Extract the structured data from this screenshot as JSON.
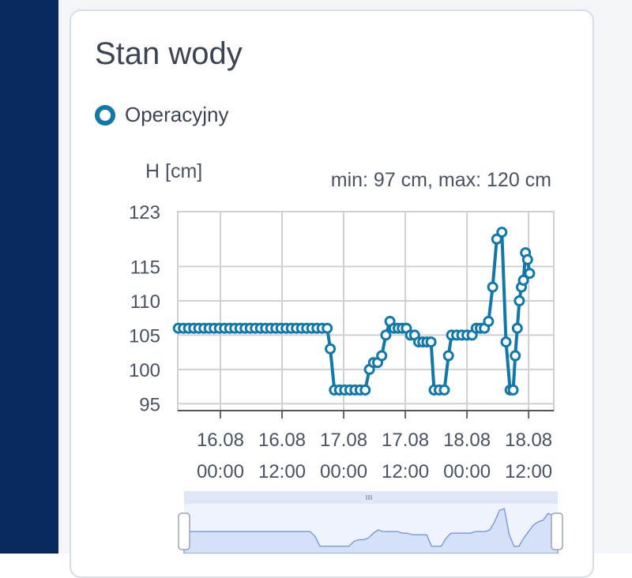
{
  "title": "Stan wody",
  "colors": {
    "sidebar": "#0a2a5e",
    "line": "#1178a8",
    "navigator_fill": "#d4e1f8",
    "navigator_line": "#7e9de0"
  },
  "legend": {
    "label": "Operacyjny"
  },
  "chart_data": {
    "type": "line",
    "ylabel": "H [cm]",
    "summary": "min: 97 cm, max: 120 cm",
    "yticks": [
      95,
      100,
      105,
      110,
      115,
      123
    ],
    "ylim": [
      94,
      123
    ],
    "xticks": [
      {
        "t": 4,
        "l1": "16.08",
        "l2": "00:00"
      },
      {
        "t": 16,
        "l1": "16.08",
        "l2": "12:00"
      },
      {
        "t": 28,
        "l1": "17.08",
        "l2": "00:00"
      },
      {
        "t": 40,
        "l1": "17.08",
        "l2": "12:00"
      },
      {
        "t": 52,
        "l1": "18.08",
        "l2": "00:00"
      },
      {
        "t": 64,
        "l1": "18.08",
        "l2": "12:00"
      }
    ],
    "xlim": [
      -4.3,
      68.9
    ],
    "grid": true,
    "series": [
      {
        "name": "Operacyjny",
        "points": [
          [
            -4.2,
            106
          ],
          [
            -3.2,
            106
          ],
          [
            -2.2,
            106
          ],
          [
            -1.2,
            106
          ],
          [
            -0.2,
            106
          ],
          [
            0.8,
            106
          ],
          [
            1.8,
            106
          ],
          [
            2.8,
            106
          ],
          [
            3.8,
            106
          ],
          [
            4.8,
            106
          ],
          [
            5.8,
            106
          ],
          [
            6.8,
            106
          ],
          [
            7.8,
            106
          ],
          [
            8.8,
            106
          ],
          [
            9.8,
            106
          ],
          [
            10.8,
            106
          ],
          [
            11.8,
            106
          ],
          [
            12.8,
            106
          ],
          [
            13.8,
            106
          ],
          [
            14.8,
            106
          ],
          [
            15.8,
            106
          ],
          [
            16.8,
            106
          ],
          [
            17.8,
            106
          ],
          [
            18.8,
            106
          ],
          [
            19.8,
            106
          ],
          [
            20.8,
            106
          ],
          [
            21.8,
            106
          ],
          [
            22.8,
            106
          ],
          [
            23.8,
            106
          ],
          [
            24.8,
            106
          ],
          [
            25.4,
            103
          ],
          [
            26.2,
            97
          ],
          [
            27.2,
            97
          ],
          [
            28.2,
            97
          ],
          [
            29.2,
            97
          ],
          [
            30.2,
            97
          ],
          [
            31.2,
            97
          ],
          [
            32.2,
            97
          ],
          [
            33.0,
            100
          ],
          [
            33.8,
            101
          ],
          [
            34.6,
            101
          ],
          [
            35.4,
            102
          ],
          [
            36.2,
            105
          ],
          [
            37.0,
            107
          ],
          [
            37.8,
            106
          ],
          [
            38.6,
            106
          ],
          [
            39.4,
            106
          ],
          [
            40.2,
            106
          ],
          [
            41.0,
            105
          ],
          [
            41.8,
            105
          ],
          [
            42.6,
            104
          ],
          [
            43.4,
            104
          ],
          [
            44.2,
            104
          ],
          [
            45.0,
            104
          ],
          [
            45.6,
            97
          ],
          [
            46.6,
            97
          ],
          [
            47.6,
            97
          ],
          [
            48.4,
            102
          ],
          [
            49.0,
            105
          ],
          [
            50.0,
            105
          ],
          [
            51.0,
            105
          ],
          [
            52.0,
            105
          ],
          [
            53.0,
            105
          ],
          [
            53.8,
            106
          ],
          [
            54.6,
            106
          ],
          [
            55.4,
            106
          ],
          [
            56.2,
            107
          ],
          [
            57.0,
            112
          ],
          [
            57.8,
            119
          ],
          [
            58.8,
            120
          ],
          [
            59.6,
            104
          ],
          [
            60.4,
            97
          ],
          [
            61.0,
            97
          ],
          [
            61.4,
            102
          ],
          [
            61.8,
            106
          ],
          [
            62.2,
            110
          ],
          [
            62.6,
            112
          ],
          [
            63.0,
            113
          ],
          [
            63.4,
            117
          ],
          [
            63.8,
            116
          ],
          [
            64.2,
            114
          ]
        ]
      }
    ],
    "navigator": {
      "values": [
        106,
        106,
        106,
        106,
        106,
        106,
        106,
        106,
        106,
        106,
        106,
        106,
        106,
        106,
        106,
        106,
        106,
        106,
        106,
        106,
        106,
        106,
        106,
        106,
        106,
        106,
        106,
        103,
        97,
        97,
        97,
        97,
        97,
        97,
        97,
        100,
        101,
        101,
        102,
        105,
        107,
        106,
        106,
        106,
        106,
        105,
        105,
        104,
        104,
        104,
        104,
        97,
        97,
        97,
        102,
        105,
        105,
        105,
        105,
        105,
        106,
        106,
        106,
        107,
        112,
        119,
        120,
        104,
        97,
        97,
        102,
        106,
        110,
        112,
        113,
        117,
        116,
        114
      ]
    }
  }
}
